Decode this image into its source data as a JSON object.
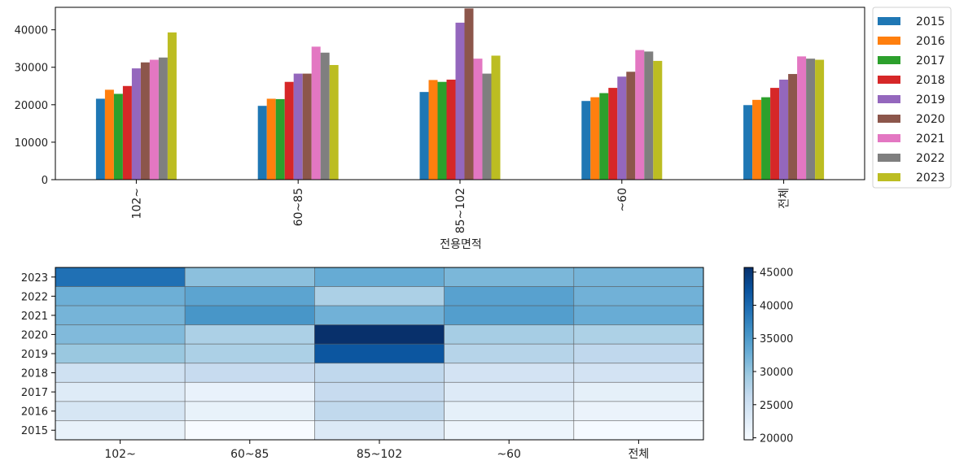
{
  "chart_data": [
    {
      "type": "bar",
      "xlabel": "전용면적",
      "ylabel": "",
      "title": "",
      "ylim": [
        0,
        46000
      ],
      "yticks": [
        0,
        10000,
        20000,
        30000,
        40000
      ],
      "categories": [
        "102~",
        "60~85",
        "85~102",
        "~60",
        "전체"
      ],
      "legend_position": "outside-top-right",
      "grid": false,
      "series": [
        {
          "name": "2015",
          "color": "#1f77b4",
          "values": [
            21600,
            19700,
            23400,
            21000,
            19900
          ]
        },
        {
          "name": "2016",
          "color": "#ff7f0e",
          "values": [
            24000,
            21600,
            26600,
            22000,
            21300
          ]
        },
        {
          "name": "2017",
          "color": "#2ca02c",
          "values": [
            22900,
            21500,
            26100,
            23100,
            22000
          ]
        },
        {
          "name": "2018",
          "color": "#d62728",
          "values": [
            25000,
            26100,
            26700,
            24500,
            24500
          ]
        },
        {
          "name": "2019",
          "color": "#9467bd",
          "values": [
            29700,
            28300,
            41900,
            27500,
            26700
          ]
        },
        {
          "name": "2020",
          "color": "#8c564b",
          "values": [
            31300,
            28300,
            45700,
            28800,
            28200
          ]
        },
        {
          "name": "2021",
          "color": "#e377c2",
          "values": [
            32000,
            35500,
            32300,
            34600,
            32900
          ]
        },
        {
          "name": "2022",
          "color": "#7f7f7f",
          "values": [
            32600,
            33900,
            28300,
            34200,
            32300
          ]
        },
        {
          "name": "2023",
          "color": "#bcbd22",
          "values": [
            39300,
            30600,
            33100,
            31700,
            32000
          ]
        }
      ]
    },
    {
      "type": "heatmap",
      "x": [
        "102~",
        "60~85",
        "85~102",
        "~60",
        "전체"
      ],
      "y": [
        "2023",
        "2022",
        "2021",
        "2020",
        "2019",
        "2018",
        "2017",
        "2016",
        "2015"
      ],
      "colormap": "Blues",
      "vmin": 19700,
      "vmax": 45700,
      "colorbar_ticks": [
        20000,
        25000,
        30000,
        35000,
        40000,
        45000
      ],
      "values": [
        [
          39300,
          30600,
          33100,
          31700,
          32000
        ],
        [
          32600,
          33900,
          28300,
          34200,
          32300
        ],
        [
          32000,
          35500,
          32300,
          34600,
          32900
        ],
        [
          31300,
          28300,
          45700,
          28800,
          28200
        ],
        [
          29700,
          28300,
          41900,
          27500,
          26700
        ],
        [
          25000,
          26100,
          26700,
          24500,
          24500
        ],
        [
          22900,
          21500,
          26100,
          23100,
          22000
        ],
        [
          24000,
          21600,
          26600,
          22000,
          21300
        ],
        [
          21600,
          19700,
          23400,
          21000,
          19900
        ]
      ]
    }
  ]
}
